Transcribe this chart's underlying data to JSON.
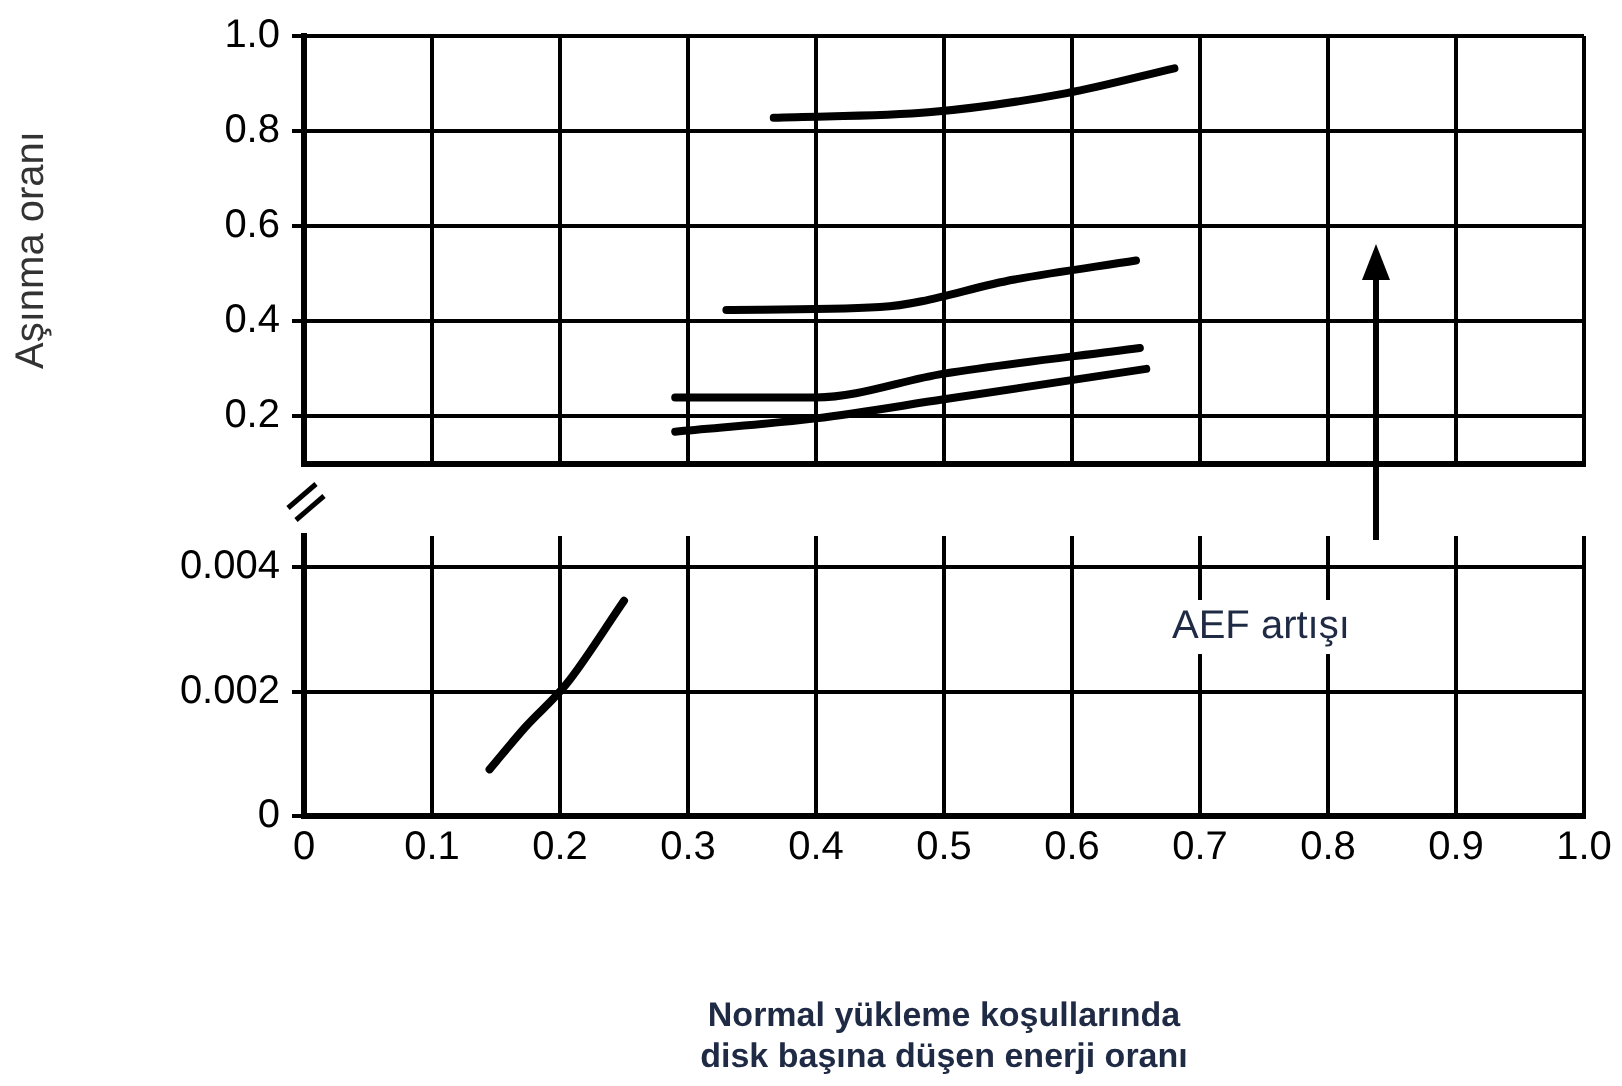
{
  "chart_data": [
    {
      "type": "line",
      "ylabel": "Aşınma oranı",
      "xlim": [
        0,
        1
      ],
      "xticks": [
        0,
        0.1,
        0.2,
        0.3,
        0.4,
        0.5,
        0.6,
        0.7,
        0.8,
        0.9,
        1
      ],
      "ylim": [
        0.1,
        1
      ],
      "yticks": [
        0.2,
        0.4,
        0.6,
        0.8,
        {
          "value": 1,
          "label": "1.0"
        }
      ],
      "grid": true,
      "legend": false,
      "tick_labels": "y",
      "marker": "none",
      "line_style": "solid",
      "series": [
        {
          "color": "#000000",
          "x": [
            0.367,
            0.49,
            0.596,
            0.68
          ],
          "values": [
            0.828,
            0.84,
            0.88,
            0.932
          ]
        },
        {
          "color": "#000000",
          "x": [
            0.33,
            0.45,
            0.555,
            0.65
          ],
          "values": [
            0.424,
            0.43,
            0.488,
            0.528
          ]
        },
        {
          "color": "#000000",
          "x": [
            0.29,
            0.4,
            0.5,
            0.653
          ],
          "values": [
            0.24,
            0.24,
            0.29,
            0.344
          ]
        },
        {
          "color": "#000000",
          "x": [
            0.29,
            0.4,
            0.5,
            0.658
          ],
          "values": [
            0.168,
            0.196,
            0.236,
            0.3
          ]
        }
      ]
    },
    {
      "type": "line",
      "xlabel": "Normal yükleme koşullarında\ndisk başına düşen enerji oranı",
      "annotations": [
        "AEF artışı"
      ],
      "xlim": [
        0,
        1
      ],
      "xticks": [
        0,
        0.1,
        0.2,
        0.3,
        0.4,
        0.5,
        0.6,
        0.7,
        0.8,
        0.9,
        {
          "value": 1,
          "label": "1.0"
        }
      ],
      "ylim": [
        0,
        0.0045
      ],
      "yticks": [
        0,
        0.002,
        0.004
      ],
      "grid": true,
      "legend": false,
      "marker": "none",
      "line_style": "solid",
      "series": [
        {
          "color": "#000000",
          "x": [
            0.145,
            0.173,
            0.205,
            0.25
          ],
          "values": [
            0.00075,
            0.00143,
            0.00212,
            0.00346
          ]
        }
      ]
    }
  ]
}
